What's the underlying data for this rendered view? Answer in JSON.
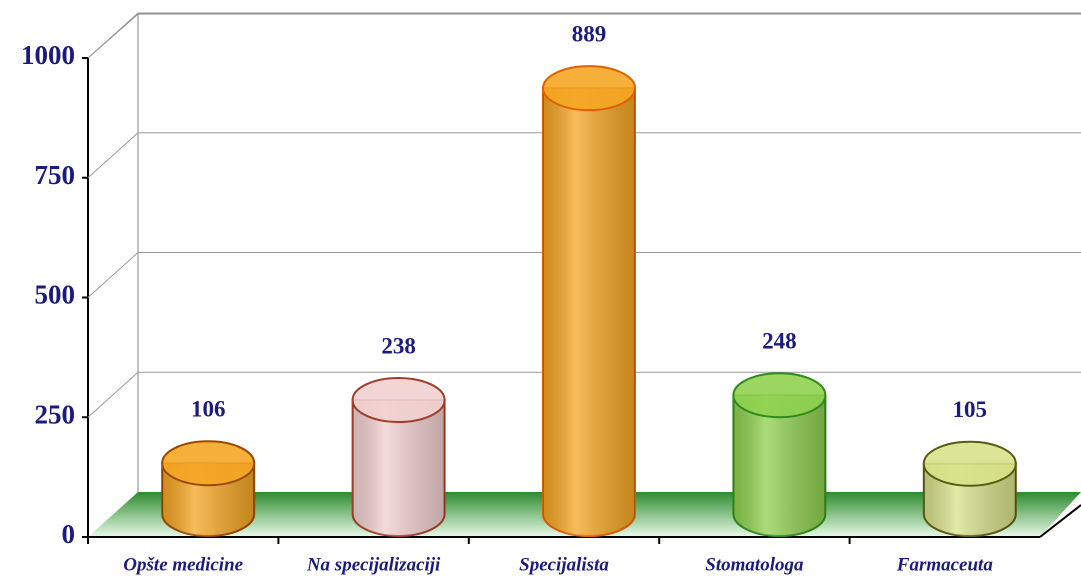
{
  "chart_data": {
    "type": "cylinder",
    "categories": [
      "Opšte medicine",
      "Na specijalizaciji",
      "Specijalista",
      "Stomatologa",
      "Farmaceuta"
    ],
    "values": [
      106,
      238,
      889,
      248,
      105
    ],
    "colors": [
      "#f5a623",
      "#f2d0d0",
      "#f5a623",
      "#8fd14f",
      "#d8e28a"
    ],
    "edge_colors": [
      "#9a4a00",
      "#a0402a",
      "#e06000",
      "#2e8b1a",
      "#5a5a10"
    ],
    "ylim": [
      0,
      1000
    ],
    "yticks": [
      0,
      250,
      500,
      750,
      1000
    ],
    "grid": true
  }
}
